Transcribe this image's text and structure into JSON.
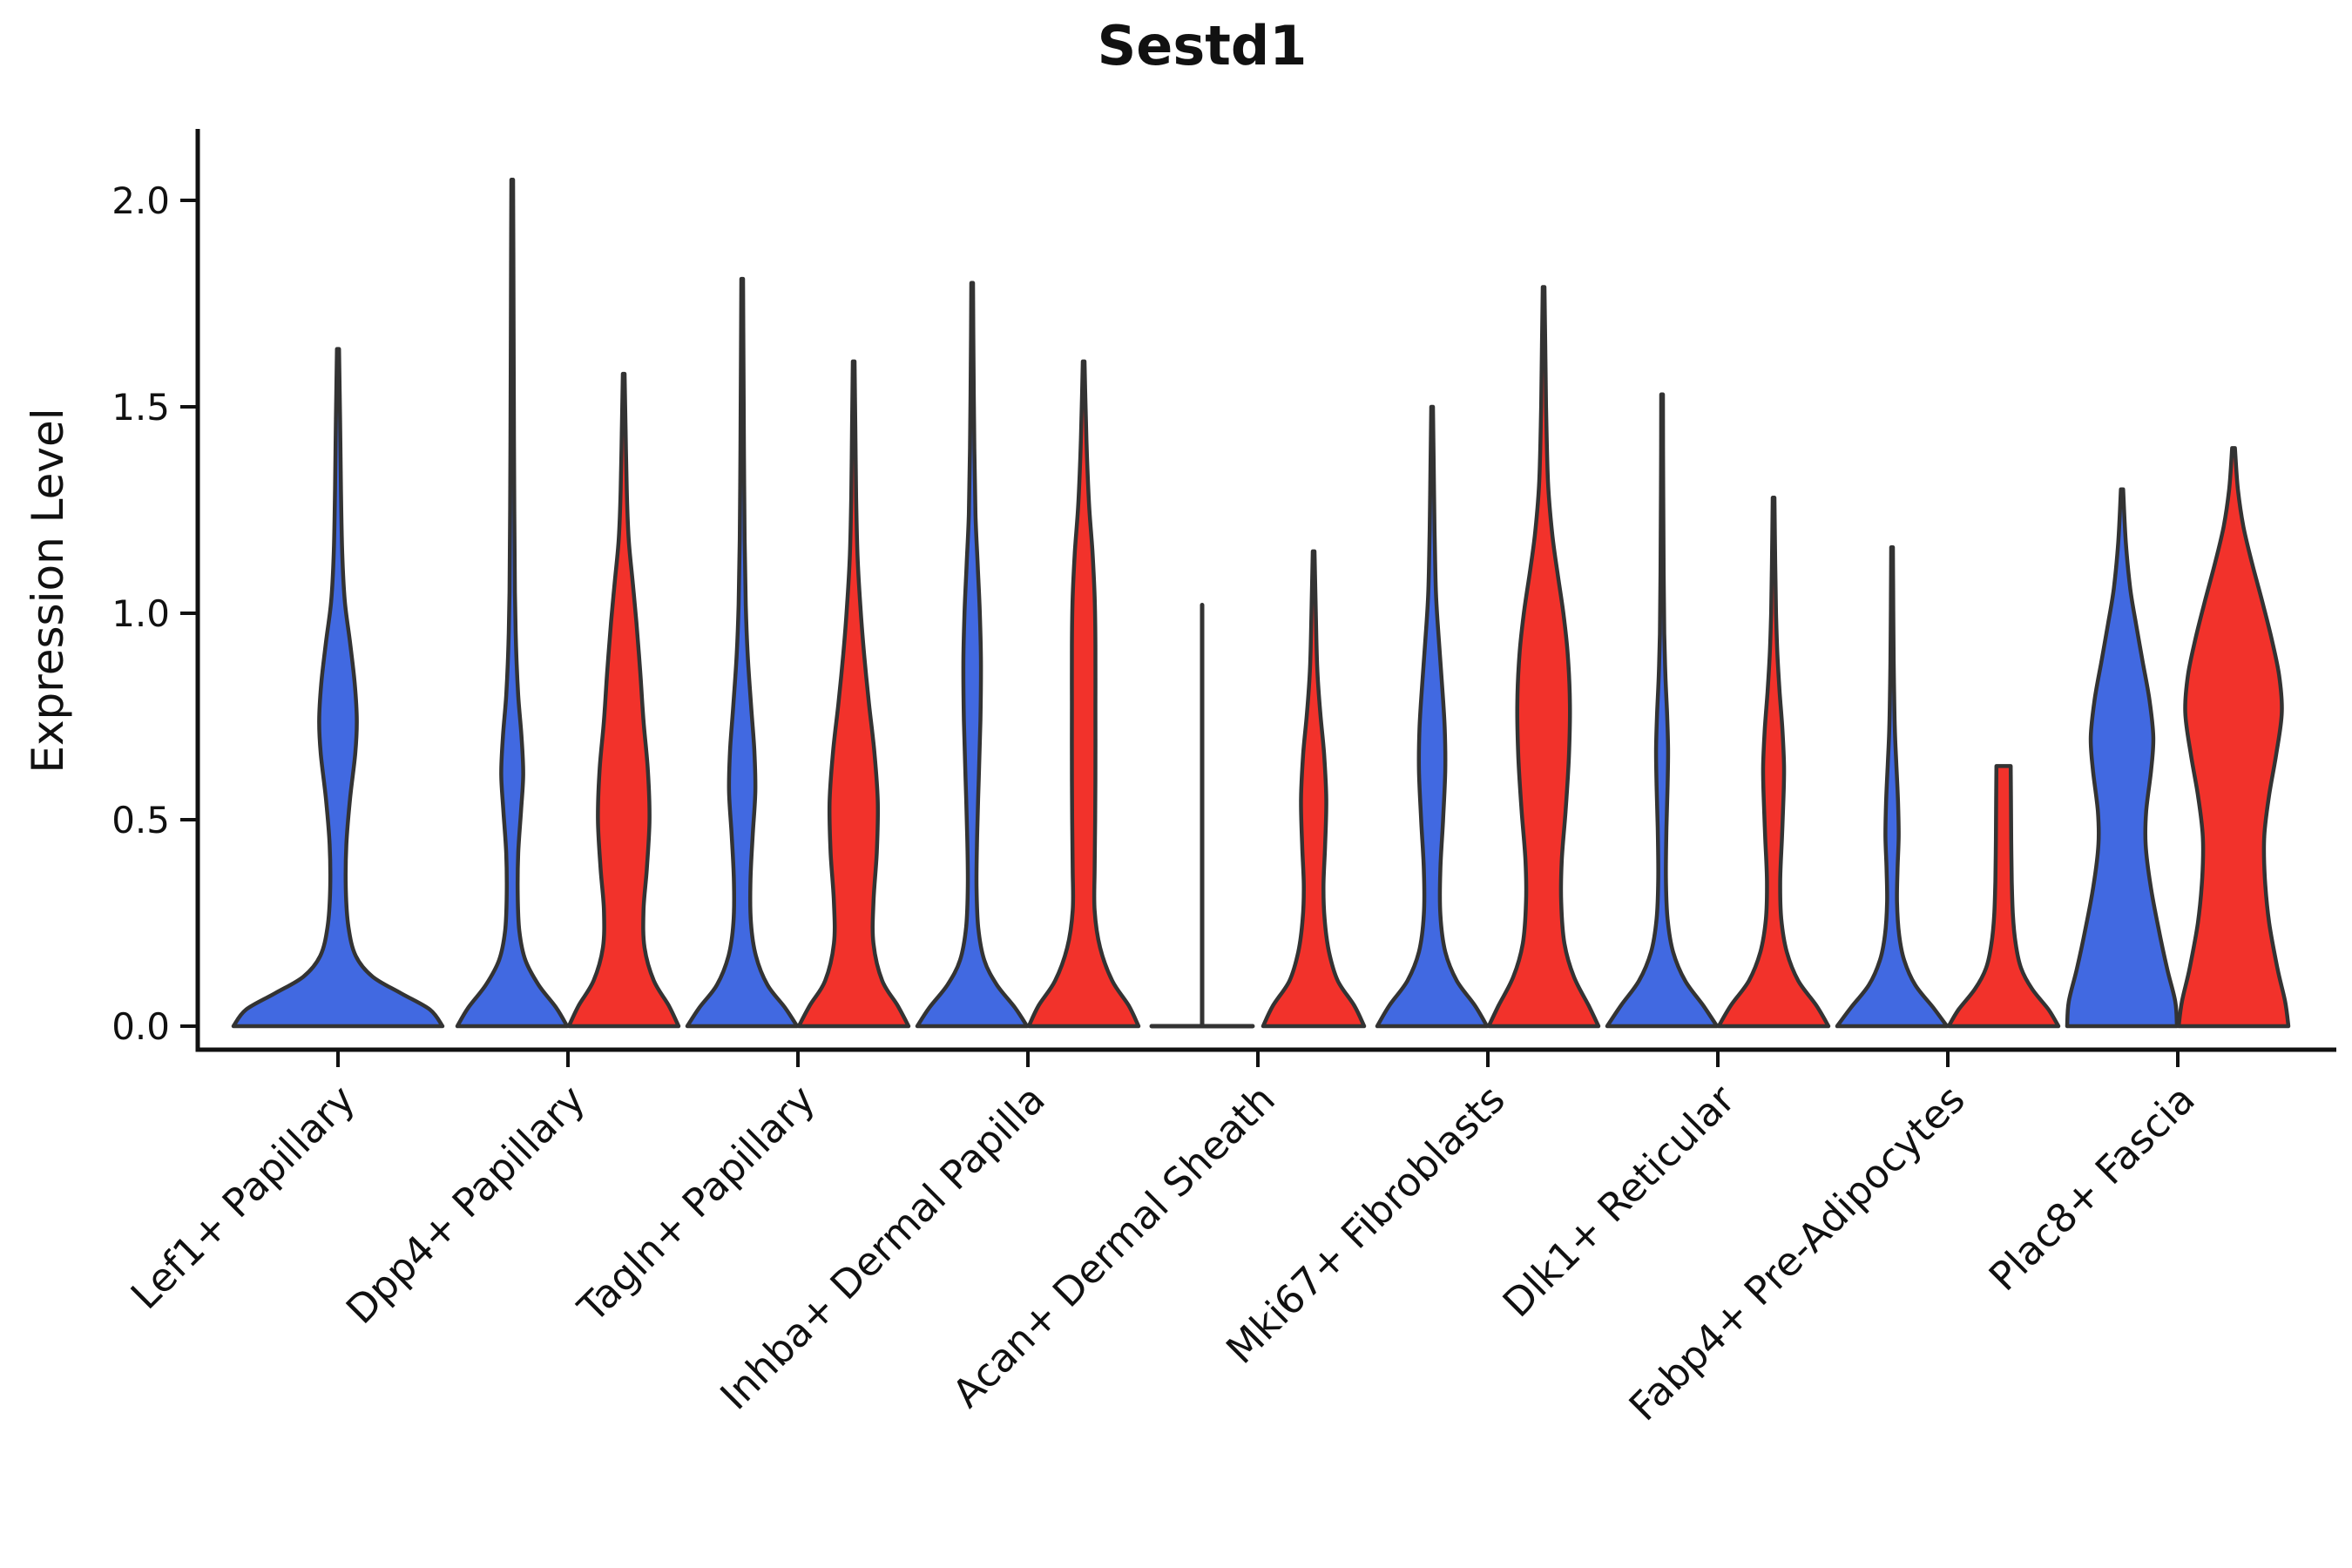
{
  "title": "Sestd1",
  "y_axis": {
    "label": "Expression Level",
    "tick_labels": [
      "0.0",
      "0.5",
      "1.0",
      "1.5",
      "2.0"
    ],
    "tick_values": [
      0,
      0.5,
      1.0,
      1.5,
      2.0
    ]
  },
  "x_axis": {
    "categories": [
      "Lef1+ Papillary",
      "Dpp4+ Papillary",
      "Tagln+ Papillary",
      "Inhba+ Dermal Papilla",
      "Acan+ Dermal Sheath",
      "Mki67+ Fibroblasts",
      "Dlk1+ Reticular",
      "Fabp4+ Pre-Adipocytes",
      "Plac8+ Fascia"
    ]
  },
  "colors": {
    "blue": "#4169E1",
    "red": "#F2322B",
    "outline": "#333333",
    "axis": "#111111"
  },
  "chart_data": {
    "type": "violin",
    "title": "Sestd1",
    "ylabel": "Expression Level",
    "ylim": [
      0,
      2.12
    ],
    "yticks": [
      0,
      0.5,
      1.0,
      1.5,
      2.0
    ],
    "grid": false,
    "legend": "none",
    "categories": [
      "Lef1+ Papillary",
      "Dpp4+ Papillary",
      "Tagln+ Papillary",
      "Inhba+ Dermal Papilla",
      "Acan+ Dermal Sheath",
      "Mki67+ Fibroblasts",
      "Dlk1+ Reticular",
      "Fabp4+ Pre-Adipocytes",
      "Plac8+ Fascia"
    ],
    "series": [
      {
        "name": "group-blue",
        "color_key": "blue",
        "max_expression": [
          1.64,
          2.05,
          1.81,
          1.8,
          1.02,
          1.5,
          1.53,
          1.16,
          1.3
        ]
      },
      {
        "name": "group-red",
        "color_key": "red",
        "max_expression": [
          null,
          1.58,
          1.61,
          1.61,
          1.15,
          1.79,
          1.28,
          0.63,
          1.4
        ]
      }
    ],
    "violins": [
      {
        "cat": 0,
        "side": "center",
        "color_key": "blue",
        "type": "violin",
        "top": 1.64,
        "profile": [
          [
            0,
            1.0
          ],
          [
            0.04,
            0.88
          ],
          [
            0.08,
            0.6
          ],
          [
            0.12,
            0.33
          ],
          [
            0.17,
            0.17
          ],
          [
            0.24,
            0.1
          ],
          [
            0.33,
            0.075
          ],
          [
            0.44,
            0.08
          ],
          [
            0.55,
            0.115
          ],
          [
            0.66,
            0.165
          ],
          [
            0.74,
            0.18
          ],
          [
            0.83,
            0.16
          ],
          [
            0.93,
            0.115
          ],
          [
            1.03,
            0.065
          ],
          [
            1.15,
            0.04
          ],
          [
            1.3,
            0.028
          ],
          [
            1.47,
            0.02
          ],
          [
            1.64,
            0.01
          ]
        ]
      },
      {
        "cat": 1,
        "side": "left",
        "color_key": "blue",
        "type": "violin",
        "top": 2.05,
        "profile": [
          [
            0,
            1.0
          ],
          [
            0.045,
            0.8
          ],
          [
            0.1,
            0.48
          ],
          [
            0.16,
            0.24
          ],
          [
            0.23,
            0.13
          ],
          [
            0.32,
            0.1
          ],
          [
            0.42,
            0.11
          ],
          [
            0.52,
            0.16
          ],
          [
            0.61,
            0.2
          ],
          [
            0.7,
            0.17
          ],
          [
            0.8,
            0.11
          ],
          [
            0.92,
            0.07
          ],
          [
            1.05,
            0.05
          ],
          [
            1.25,
            0.038
          ],
          [
            1.5,
            0.03
          ],
          [
            1.75,
            0.024
          ],
          [
            2.05,
            0.012
          ]
        ]
      },
      {
        "cat": 1,
        "side": "right",
        "color_key": "red",
        "type": "violin",
        "top": 1.58,
        "profile": [
          [
            0,
            1.0
          ],
          [
            0.05,
            0.82
          ],
          [
            0.11,
            0.55
          ],
          [
            0.19,
            0.38
          ],
          [
            0.28,
            0.36
          ],
          [
            0.38,
            0.42
          ],
          [
            0.5,
            0.47
          ],
          [
            0.62,
            0.44
          ],
          [
            0.74,
            0.36
          ],
          [
            0.86,
            0.3
          ],
          [
            0.98,
            0.23
          ],
          [
            1.08,
            0.16
          ],
          [
            1.18,
            0.09
          ],
          [
            1.3,
            0.055
          ],
          [
            1.44,
            0.035
          ],
          [
            1.58,
            0.015
          ]
        ]
      },
      {
        "cat": 2,
        "side": "left",
        "color_key": "blue",
        "type": "violin",
        "top": 1.81,
        "profile": [
          [
            0,
            1.0
          ],
          [
            0.045,
            0.78
          ],
          [
            0.1,
            0.46
          ],
          [
            0.17,
            0.25
          ],
          [
            0.25,
            0.16
          ],
          [
            0.35,
            0.15
          ],
          [
            0.46,
            0.19
          ],
          [
            0.57,
            0.24
          ],
          [
            0.67,
            0.22
          ],
          [
            0.78,
            0.16
          ],
          [
            0.9,
            0.1
          ],
          [
            1.02,
            0.065
          ],
          [
            1.18,
            0.045
          ],
          [
            1.4,
            0.032
          ],
          [
            1.6,
            0.024
          ],
          [
            1.81,
            0.012
          ]
        ]
      },
      {
        "cat": 2,
        "side": "right",
        "color_key": "red",
        "type": "violin",
        "top": 1.61,
        "profile": [
          [
            0,
            1.0
          ],
          [
            0.05,
            0.8
          ],
          [
            0.11,
            0.52
          ],
          [
            0.2,
            0.36
          ],
          [
            0.3,
            0.36
          ],
          [
            0.42,
            0.42
          ],
          [
            0.54,
            0.44
          ],
          [
            0.66,
            0.38
          ],
          [
            0.78,
            0.28
          ],
          [
            0.9,
            0.19
          ],
          [
            1.02,
            0.12
          ],
          [
            1.14,
            0.07
          ],
          [
            1.28,
            0.045
          ],
          [
            1.45,
            0.03
          ],
          [
            1.61,
            0.015
          ]
        ]
      },
      {
        "cat": 3,
        "side": "left",
        "color_key": "blue",
        "type": "violin",
        "top": 1.8,
        "profile": [
          [
            0,
            1.0
          ],
          [
            0.045,
            0.78
          ],
          [
            0.1,
            0.45
          ],
          [
            0.16,
            0.22
          ],
          [
            0.24,
            0.11
          ],
          [
            0.34,
            0.08
          ],
          [
            0.46,
            0.09
          ],
          [
            0.6,
            0.12
          ],
          [
            0.74,
            0.15
          ],
          [
            0.88,
            0.16
          ],
          [
            1.0,
            0.14
          ],
          [
            1.12,
            0.1
          ],
          [
            1.24,
            0.06
          ],
          [
            1.4,
            0.04
          ],
          [
            1.6,
            0.025
          ],
          [
            1.8,
            0.012
          ]
        ]
      },
      {
        "cat": 3,
        "side": "right",
        "color_key": "red",
        "type": "violin",
        "top": 1.61,
        "profile": [
          [
            0,
            1.0
          ],
          [
            0.05,
            0.82
          ],
          [
            0.11,
            0.52
          ],
          [
            0.19,
            0.3
          ],
          [
            0.28,
            0.2
          ],
          [
            0.38,
            0.2
          ],
          [
            0.5,
            0.21
          ],
          [
            0.64,
            0.215
          ],
          [
            0.78,
            0.215
          ],
          [
            0.92,
            0.215
          ],
          [
            1.04,
            0.2
          ],
          [
            1.15,
            0.16
          ],
          [
            1.26,
            0.1
          ],
          [
            1.38,
            0.06
          ],
          [
            1.5,
            0.035
          ],
          [
            1.61,
            0.015
          ]
        ]
      },
      {
        "cat": 4,
        "side": "left",
        "color_key": "blue",
        "type": "line",
        "top": 1.02,
        "base_halfwidth_rel": 0.92,
        "profile": [
          [
            0,
            0.92
          ],
          [
            1.02,
            0.0
          ]
        ]
      },
      {
        "cat": 4,
        "side": "right",
        "color_key": "red",
        "type": "violin",
        "top": 1.15,
        "profile": [
          [
            0,
            0.92
          ],
          [
            0.05,
            0.74
          ],
          [
            0.11,
            0.44
          ],
          [
            0.18,
            0.28
          ],
          [
            0.26,
            0.2
          ],
          [
            0.34,
            0.18
          ],
          [
            0.44,
            0.21
          ],
          [
            0.55,
            0.23
          ],
          [
            0.66,
            0.19
          ],
          [
            0.76,
            0.12
          ],
          [
            0.87,
            0.065
          ],
          [
            1.0,
            0.04
          ],
          [
            1.15,
            0.015
          ]
        ]
      },
      {
        "cat": 5,
        "side": "left",
        "color_key": "blue",
        "type": "violin",
        "top": 1.5,
        "profile": [
          [
            0,
            1.0
          ],
          [
            0.05,
            0.78
          ],
          [
            0.11,
            0.45
          ],
          [
            0.18,
            0.24
          ],
          [
            0.27,
            0.15
          ],
          [
            0.38,
            0.15
          ],
          [
            0.5,
            0.2
          ],
          [
            0.62,
            0.24
          ],
          [
            0.72,
            0.23
          ],
          [
            0.83,
            0.18
          ],
          [
            0.94,
            0.12
          ],
          [
            1.05,
            0.07
          ],
          [
            1.2,
            0.045
          ],
          [
            1.35,
            0.03
          ],
          [
            1.5,
            0.015
          ]
        ]
      },
      {
        "cat": 5,
        "side": "right",
        "color_key": "red",
        "type": "violin",
        "top": 1.79,
        "profile": [
          [
            0,
            1.0
          ],
          [
            0.05,
            0.82
          ],
          [
            0.12,
            0.55
          ],
          [
            0.2,
            0.38
          ],
          [
            0.3,
            0.32
          ],
          [
            0.4,
            0.33
          ],
          [
            0.52,
            0.4
          ],
          [
            0.65,
            0.46
          ],
          [
            0.78,
            0.48
          ],
          [
            0.9,
            0.44
          ],
          [
            1.0,
            0.36
          ],
          [
            1.1,
            0.25
          ],
          [
            1.2,
            0.15
          ],
          [
            1.32,
            0.08
          ],
          [
            1.5,
            0.045
          ],
          [
            1.65,
            0.03
          ],
          [
            1.79,
            0.015
          ]
        ]
      },
      {
        "cat": 6,
        "side": "left",
        "color_key": "blue",
        "type": "violin",
        "top": 1.53,
        "profile": [
          [
            0,
            1.0
          ],
          [
            0.05,
            0.75
          ],
          [
            0.11,
            0.42
          ],
          [
            0.18,
            0.2
          ],
          [
            0.26,
            0.1
          ],
          [
            0.36,
            0.07
          ],
          [
            0.48,
            0.08
          ],
          [
            0.58,
            0.1
          ],
          [
            0.67,
            0.11
          ],
          [
            0.76,
            0.09
          ],
          [
            0.85,
            0.06
          ],
          [
            0.95,
            0.04
          ],
          [
            1.1,
            0.028
          ],
          [
            1.3,
            0.02
          ],
          [
            1.53,
            0.012
          ]
        ]
      },
      {
        "cat": 6,
        "side": "right",
        "color_key": "red",
        "type": "violin",
        "top": 1.28,
        "profile": [
          [
            0,
            1.0
          ],
          [
            0.05,
            0.78
          ],
          [
            0.11,
            0.45
          ],
          [
            0.18,
            0.24
          ],
          [
            0.26,
            0.14
          ],
          [
            0.35,
            0.12
          ],
          [
            0.45,
            0.15
          ],
          [
            0.55,
            0.18
          ],
          [
            0.63,
            0.19
          ],
          [
            0.72,
            0.16
          ],
          [
            0.81,
            0.11
          ],
          [
            0.9,
            0.07
          ],
          [
            1.0,
            0.045
          ],
          [
            1.12,
            0.03
          ],
          [
            1.28,
            0.015
          ]
        ]
      },
      {
        "cat": 7,
        "side": "left",
        "color_key": "blue",
        "type": "violin",
        "top": 1.16,
        "profile": [
          [
            0,
            1.0
          ],
          [
            0.045,
            0.75
          ],
          [
            0.1,
            0.42
          ],
          [
            0.16,
            0.22
          ],
          [
            0.22,
            0.13
          ],
          [
            0.3,
            0.09
          ],
          [
            0.38,
            0.1
          ],
          [
            0.46,
            0.12
          ],
          [
            0.54,
            0.11
          ],
          [
            0.63,
            0.08
          ],
          [
            0.72,
            0.05
          ],
          [
            0.83,
            0.035
          ],
          [
            0.95,
            0.025
          ],
          [
            1.05,
            0.02
          ],
          [
            1.16,
            0.012
          ]
        ]
      },
      {
        "cat": 7,
        "side": "right",
        "color_key": "red",
        "type": "violin",
        "top": 0.63,
        "flat_top": true,
        "profile": [
          [
            0,
            1.0
          ],
          [
            0.04,
            0.82
          ],
          [
            0.09,
            0.52
          ],
          [
            0.14,
            0.32
          ],
          [
            0.2,
            0.22
          ],
          [
            0.27,
            0.17
          ],
          [
            0.35,
            0.15
          ],
          [
            0.45,
            0.14
          ],
          [
            0.55,
            0.135
          ],
          [
            0.63,
            0.13
          ]
        ]
      },
      {
        "cat": 8,
        "side": "left",
        "color_key": "blue",
        "type": "violin",
        "top": 1.3,
        "profile": [
          [
            0,
            1.0
          ],
          [
            0.06,
            0.97
          ],
          [
            0.14,
            0.82
          ],
          [
            0.24,
            0.66
          ],
          [
            0.34,
            0.52
          ],
          [
            0.44,
            0.43
          ],
          [
            0.52,
            0.44
          ],
          [
            0.62,
            0.53
          ],
          [
            0.7,
            0.57
          ],
          [
            0.79,
            0.5
          ],
          [
            0.88,
            0.38
          ],
          [
            0.97,
            0.26
          ],
          [
            1.06,
            0.15
          ],
          [
            1.17,
            0.07
          ],
          [
            1.3,
            0.02
          ]
        ]
      },
      {
        "cat": 8,
        "side": "right",
        "color_key": "red",
        "type": "violin",
        "top": 1.4,
        "profile": [
          [
            0,
            1.0
          ],
          [
            0.06,
            0.94
          ],
          [
            0.14,
            0.8
          ],
          [
            0.25,
            0.65
          ],
          [
            0.36,
            0.57
          ],
          [
            0.46,
            0.56
          ],
          [
            0.56,
            0.65
          ],
          [
            0.66,
            0.78
          ],
          [
            0.76,
            0.88
          ],
          [
            0.85,
            0.83
          ],
          [
            0.94,
            0.69
          ],
          [
            1.03,
            0.52
          ],
          [
            1.12,
            0.34
          ],
          [
            1.21,
            0.18
          ],
          [
            1.3,
            0.08
          ],
          [
            1.4,
            0.025
          ]
        ]
      }
    ]
  }
}
